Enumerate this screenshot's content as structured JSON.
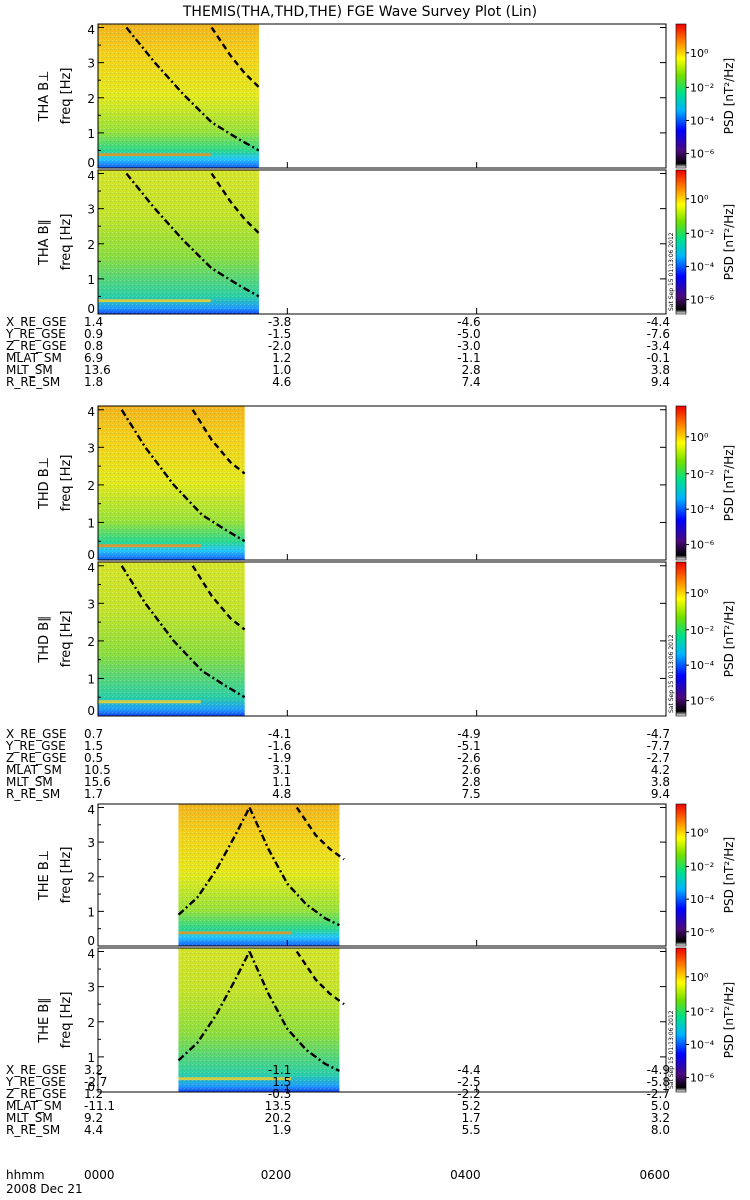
{
  "title": "THEMIS(THA,THD,THE) FGE Wave Survey Plot (Lin)",
  "chart_data": {
    "type": "heatmap",
    "x_axis": {
      "unit_label": "hhmm",
      "date_label": "2008 Dec 21",
      "ticks": [
        "0000",
        "0200",
        "0400",
        "0600"
      ],
      "range_hours": [
        0,
        6
      ]
    },
    "panels": [
      {
        "probe": "THA",
        "ylabel": "THA B⊥",
        "yunit": "freq [Hz]",
        "ylim": [
          0,
          4.1
        ],
        "yticks": [
          "0",
          "1",
          "2",
          "3",
          "4"
        ],
        "data_coverage_hours": [
          0,
          1.7
        ],
        "colorbar": {
          "label": "PSD [nT²/Hz]",
          "ticks": [
            "10⁰",
            "10⁻²",
            "10⁻⁴",
            "10⁻⁶"
          ],
          "stamp": ""
        },
        "curves": {
          "dashdot": [
            [
              0.3,
              4.0
            ],
            [
              0.6,
              3.0
            ],
            [
              0.9,
              2.1
            ],
            [
              1.2,
              1.3
            ],
            [
              1.5,
              0.8
            ],
            [
              1.7,
              0.5
            ]
          ],
          "dashed": [
            [
              1.2,
              4.0
            ],
            [
              1.4,
              3.2
            ],
            [
              1.55,
              2.7
            ],
            [
              1.7,
              2.3
            ]
          ]
        }
      },
      {
        "probe": "THA",
        "ylabel": "THA B∥",
        "yunit": "freq [Hz]",
        "ylim": [
          0,
          4.1
        ],
        "yticks": [
          "0",
          "1",
          "2",
          "3",
          "4"
        ],
        "data_coverage_hours": [
          0,
          1.7
        ],
        "colorbar": {
          "label": "PSD [nT²/Hz]",
          "ticks": [
            "10⁰",
            "10⁻²",
            "10⁻⁴",
            "10⁻⁶"
          ],
          "stamp": "Sat Sep 15 01:13:06 2012"
        },
        "curves": {
          "dashdot": [
            [
              0.3,
              4.0
            ],
            [
              0.6,
              3.0
            ],
            [
              0.9,
              2.1
            ],
            [
              1.2,
              1.3
            ],
            [
              1.5,
              0.8
            ],
            [
              1.7,
              0.5
            ]
          ],
          "dashed": [
            [
              1.2,
              4.0
            ],
            [
              1.4,
              3.2
            ],
            [
              1.55,
              2.7
            ],
            [
              1.7,
              2.3
            ]
          ]
        }
      },
      {
        "probe": "THD",
        "ylabel": "THD B⊥",
        "yunit": "freq [Hz]",
        "ylim": [
          0,
          4.1
        ],
        "yticks": [
          "0",
          "1",
          "2",
          "3",
          "4"
        ],
        "data_coverage_hours": [
          0,
          1.55
        ],
        "colorbar": {
          "label": "PSD [nT²/Hz]",
          "ticks": [
            "10⁰",
            "10⁻²",
            "10⁻⁴",
            "10⁻⁶"
          ],
          "stamp": ""
        },
        "curves": {
          "dashdot": [
            [
              0.25,
              4.0
            ],
            [
              0.5,
              3.0
            ],
            [
              0.8,
              2.0
            ],
            [
              1.1,
              1.2
            ],
            [
              1.35,
              0.8
            ],
            [
              1.55,
              0.5
            ]
          ],
          "dashed": [
            [
              1.0,
              4.0
            ],
            [
              1.2,
              3.2
            ],
            [
              1.4,
              2.6
            ],
            [
              1.55,
              2.3
            ]
          ]
        }
      },
      {
        "probe": "THD",
        "ylabel": "THD B∥",
        "yunit": "freq [Hz]",
        "ylim": [
          0,
          4.1
        ],
        "yticks": [
          "0",
          "1",
          "2",
          "3",
          "4"
        ],
        "data_coverage_hours": [
          0,
          1.55
        ],
        "colorbar": {
          "label": "PSD [nT²/Hz]",
          "ticks": [
            "10⁰",
            "10⁻²",
            "10⁻⁴",
            "10⁻⁶"
          ],
          "stamp": "Sat Sep 15 01:13:06 2012"
        },
        "curves": {
          "dashdot": [
            [
              0.25,
              4.0
            ],
            [
              0.5,
              3.0
            ],
            [
              0.8,
              2.0
            ],
            [
              1.1,
              1.2
            ],
            [
              1.35,
              0.8
            ],
            [
              1.55,
              0.5
            ]
          ],
          "dashed": [
            [
              1.0,
              4.0
            ],
            [
              1.2,
              3.2
            ],
            [
              1.4,
              2.6
            ],
            [
              1.55,
              2.3
            ]
          ]
        }
      },
      {
        "probe": "THE",
        "ylabel": "THE B⊥",
        "yunit": "freq [Hz]",
        "ylim": [
          0,
          4.1
        ],
        "yticks": [
          "0",
          "1",
          "2",
          "3",
          "4"
        ],
        "data_coverage_hours": [
          0.85,
          2.55
        ],
        "colorbar": {
          "label": "PSD [nT²/Hz]",
          "ticks": [
            "10⁰",
            "10⁻²",
            "10⁻⁴",
            "10⁻⁶"
          ],
          "stamp": ""
        },
        "curves": {
          "dashdot_left": [
            [
              0.85,
              0.9
            ],
            [
              1.05,
              1.4
            ],
            [
              1.25,
              2.2
            ],
            [
              1.45,
              3.2
            ],
            [
              1.6,
              4.0
            ]
          ],
          "dashdot_right": [
            [
              1.6,
              4.0
            ],
            [
              1.8,
              2.8
            ],
            [
              2.0,
              1.8
            ],
            [
              2.2,
              1.2
            ],
            [
              2.4,
              0.8
            ],
            [
              2.55,
              0.6
            ]
          ],
          "dashed": [
            [
              2.1,
              4.0
            ],
            [
              2.3,
              3.2
            ],
            [
              2.45,
              2.8
            ],
            [
              2.6,
              2.5
            ]
          ]
        }
      },
      {
        "probe": "THE",
        "ylabel": "THE B∥",
        "yunit": "freq [Hz]",
        "ylim": [
          0,
          4.1
        ],
        "yticks": [
          "0",
          "1",
          "2",
          "3",
          "4"
        ],
        "data_coverage_hours": [
          0.85,
          2.55
        ],
        "colorbar": {
          "label": "PSD [nT²/Hz]",
          "ticks": [
            "10⁰",
            "10⁻²",
            "10⁻⁴",
            "10⁻⁶"
          ],
          "stamp": "Sat Sep 15 01:13:06 2012"
        },
        "curves": {
          "dashdot_left": [
            [
              0.85,
              0.9
            ],
            [
              1.05,
              1.4
            ],
            [
              1.25,
              2.2
            ],
            [
              1.45,
              3.2
            ],
            [
              1.6,
              4.0
            ]
          ],
          "dashdot_right": [
            [
              1.6,
              4.0
            ],
            [
              1.8,
              2.8
            ],
            [
              2.0,
              1.8
            ],
            [
              2.2,
              1.2
            ],
            [
              2.4,
              0.8
            ],
            [
              2.55,
              0.6
            ]
          ],
          "dashed": [
            [
              2.1,
              4.0
            ],
            [
              2.3,
              3.2
            ],
            [
              2.45,
              2.8
            ],
            [
              2.6,
              2.5
            ]
          ]
        }
      }
    ],
    "ephemeris": [
      {
        "probe": "THA",
        "rows": [
          {
            "label": "X_RE_GSE",
            "values": [
              "1.4",
              "-3.8",
              "-4.6",
              "-4.4"
            ]
          },
          {
            "label": "Y_RE_GSE",
            "values": [
              "0.9",
              "-1.5",
              "-5.0",
              "-7.6"
            ]
          },
          {
            "label": "Z_RE_GSE",
            "values": [
              "0.8",
              "-2.0",
              "-3.0",
              "-3.4"
            ]
          },
          {
            "label": "MLAT_SM",
            "values": [
              "6.9",
              "1.2",
              "-1.1",
              "-0.1"
            ]
          },
          {
            "label": "MLT_SM",
            "values": [
              "13.6",
              "1.0",
              "2.8",
              "3.8"
            ]
          },
          {
            "label": "R_RE_SM",
            "values": [
              "1.8",
              "4.6",
              "7.4",
              "9.4"
            ]
          }
        ]
      },
      {
        "probe": "THD",
        "rows": [
          {
            "label": "X_RE_GSE",
            "values": [
              "0.7",
              "-4.1",
              "-4.9",
              "-4.7"
            ]
          },
          {
            "label": "Y_RE_GSE",
            "values": [
              "1.5",
              "-1.6",
              "-5.1",
              "-7.7"
            ]
          },
          {
            "label": "Z_RE_GSE",
            "values": [
              "0.5",
              "-1.9",
              "-2.6",
              "-2.7"
            ]
          },
          {
            "label": "MLAT_SM",
            "values": [
              "10.5",
              "3.1",
              "2.6",
              "4.2"
            ]
          },
          {
            "label": "MLT_SM",
            "values": [
              "15.6",
              "1.1",
              "2.8",
              "3.8"
            ]
          },
          {
            "label": "R_RE_SM",
            "values": [
              "1.7",
              "4.8",
              "7.5",
              "9.4"
            ]
          }
        ]
      },
      {
        "probe": "THE",
        "rows": [
          {
            "label": "X_RE_GSE",
            "values": [
              "3.2",
              "-1.1",
              "-4.4",
              "-4.9"
            ]
          },
          {
            "label": "Y_RE_GSE",
            "values": [
              "-2.7",
              "1.5",
              "-2.5",
              "-5.8"
            ]
          },
          {
            "label": "Z_RE_GSE",
            "values": [
              "1.2",
              "-0.3",
              "-2.2",
              "-2.7"
            ]
          },
          {
            "label": "MLAT_SM",
            "values": [
              "-11.1",
              "13.5",
              "5.2",
              "5.0"
            ]
          },
          {
            "label": "MLT_SM",
            "values": [
              "9.2",
              "20.2",
              "1.7",
              "3.2"
            ]
          },
          {
            "label": "R_RE_SM",
            "values": [
              "4.4",
              "1.9",
              "5.5",
              "8.0"
            ]
          }
        ]
      }
    ]
  }
}
